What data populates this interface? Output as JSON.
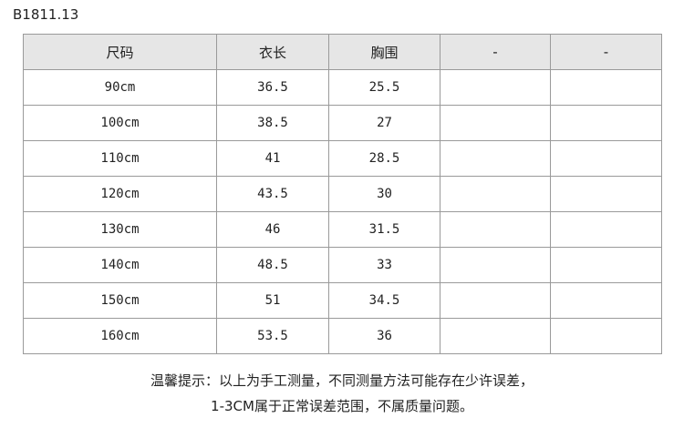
{
  "product_code": "B1811.13",
  "table": {
    "headers": [
      "尺码",
      "衣长",
      "胸围",
      "-",
      "-"
    ],
    "rows": [
      [
        "90cm",
        "36.5",
        "25.5",
        "",
        ""
      ],
      [
        "100cm",
        "38.5",
        "27",
        "",
        ""
      ],
      [
        "110cm",
        "41",
        "28.5",
        "",
        ""
      ],
      [
        "120cm",
        "43.5",
        "30",
        "",
        ""
      ],
      [
        "130cm",
        "46",
        "31.5",
        "",
        ""
      ],
      [
        "140cm",
        "48.5",
        "33",
        "",
        ""
      ],
      [
        "150cm",
        "51",
        "34.5",
        "",
        ""
      ],
      [
        "160cm",
        "53.5",
        "36",
        "",
        ""
      ]
    ]
  },
  "note": {
    "line1": "温馨提示：以上为手工测量，不同测量方法可能存在少许误差，",
    "line2": "1-3CM属于正常误差范围，不属质量问题。"
  }
}
